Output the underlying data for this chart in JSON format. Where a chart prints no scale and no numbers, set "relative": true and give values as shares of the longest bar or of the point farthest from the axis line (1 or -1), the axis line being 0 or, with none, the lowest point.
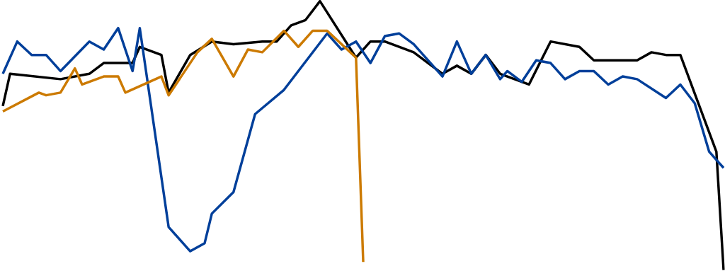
{
  "chart_data": {
    "type": "line",
    "relative": true,
    "categories": [
      null,
      null,
      null,
      null,
      null,
      null,
      null,
      null,
      null,
      null,
      null,
      null,
      null,
      null,
      null,
      null,
      null,
      null,
      null,
      null,
      null,
      null,
      null,
      null,
      null,
      null,
      null,
      null,
      null,
      null,
      null,
      null,
      null,
      null,
      null,
      null,
      null,
      null,
      null,
      null,
      null,
      null,
      null,
      null,
      null,
      null,
      null,
      null,
      null,
      null,
      null,
      null,
      null,
      null,
      null,
      null,
      null,
      null,
      null,
      null,
      null,
      null,
      null,
      null,
      null,
      null,
      null,
      null,
      null,
      null,
      null,
      null,
      null,
      null,
      null,
      null,
      null,
      null,
      null,
      null,
      null,
      null,
      null,
      null,
      null,
      null,
      null,
      null,
      null,
      null,
      null,
      null,
      null,
      null,
      null,
      null,
      null,
      null,
      null,
      null,
      null
    ],
    "series": [
      {
        "color": "#000000",
        "values": [
          0.61,
          0.73,
          null,
          null,
          null,
          null,
          null,
          null,
          0.71,
          null,
          null,
          null,
          0.73,
          null,
          0.77,
          null,
          null,
          null,
          0.77,
          0.83,
          null,
          null,
          0.8,
          0.66,
          null,
          null,
          0.8,
          null,
          null,
          0.85,
          null,
          null,
          0.84,
          null,
          null,
          null,
          0.85,
          null,
          0.85,
          null,
          0.91,
          null,
          0.93,
          null,
          1.0,
          null,
          null,
          null,
          null,
          0.79,
          null,
          0.85,
          null,
          0.85,
          null,
          null,
          null,
          0.81,
          null,
          null,
          null,
          0.73,
          null,
          0.76,
          null,
          0.73,
          null,
          0.8,
          null,
          0.73,
          null,
          null,
          null,
          0.69,
          null,
          null,
          0.85,
          null,
          null,
          null,
          0.83,
          null,
          0.78,
          null,
          null,
          null,
          null,
          null,
          0.78,
          null,
          0.81,
          null,
          0.8,
          null,
          0.8,
          null,
          null,
          null,
          null,
          0.44,
          0
        ]
      },
      {
        "color": "#003f9a",
        "values": [
          0.73,
          null,
          0.85,
          null,
          0.8,
          null,
          0.8,
          null,
          0.74,
          null,
          null,
          null,
          0.85,
          null,
          0.82,
          null,
          0.9,
          null,
          0.74,
          0.9,
          null,
          null,
          null,
          0.16,
          null,
          null,
          0.07,
          null,
          0.1,
          0.21,
          null,
          null,
          0.29,
          null,
          null,
          0.58,
          null,
          null,
          null,
          0.67,
          null,
          null,
          null,
          null,
          null,
          0.88,
          null,
          0.82,
          null,
          0.85,
          null,
          0.77,
          null,
          0.87,
          null,
          0.88,
          null,
          0.84,
          null,
          null,
          null,
          0.72,
          null,
          0.85,
          null,
          0.73,
          null,
          0.8,
          null,
          0.71,
          0.74,
          null,
          0.7,
          null,
          0.78,
          null,
          0.77,
          null,
          0.71,
          null,
          0.74,
          null,
          0.74,
          null,
          0.69,
          null,
          0.72,
          null,
          0.71,
          null,
          null,
          null,
          0.64,
          null,
          0.69,
          null,
          0.62,
          null,
          0.44,
          null,
          0.38
        ]
      },
      {
        "color": "#cc7a00",
        "values": [
          0.59,
          null,
          null,
          null,
          null,
          0.66,
          0.65,
          null,
          0.66,
          null,
          0.75,
          0.69,
          null,
          null,
          0.72,
          null,
          0.72,
          0.66,
          null,
          null,
          null,
          null,
          0.72,
          0.65,
          null,
          null,
          null,
          0.81,
          null,
          0.86,
          null,
          null,
          0.72,
          null,
          0.82,
          null,
          0.81,
          null,
          null,
          0.89,
          null,
          0.83,
          null,
          0.89,
          null,
          0.89,
          null,
          null,
          null,
          0.79,
          0.03,
          null,
          null,
          null,
          null,
          null,
          null,
          null,
          null,
          null,
          null,
          null,
          null,
          null,
          null,
          null,
          null,
          null,
          null,
          null,
          null,
          null,
          null,
          null,
          null,
          null,
          null,
          null,
          null,
          null,
          null,
          null,
          null,
          null,
          null,
          null,
          null,
          null,
          null,
          null,
          null,
          null,
          null,
          null,
          null,
          null,
          null,
          null,
          null,
          null,
          null
        ]
      }
    ]
  }
}
